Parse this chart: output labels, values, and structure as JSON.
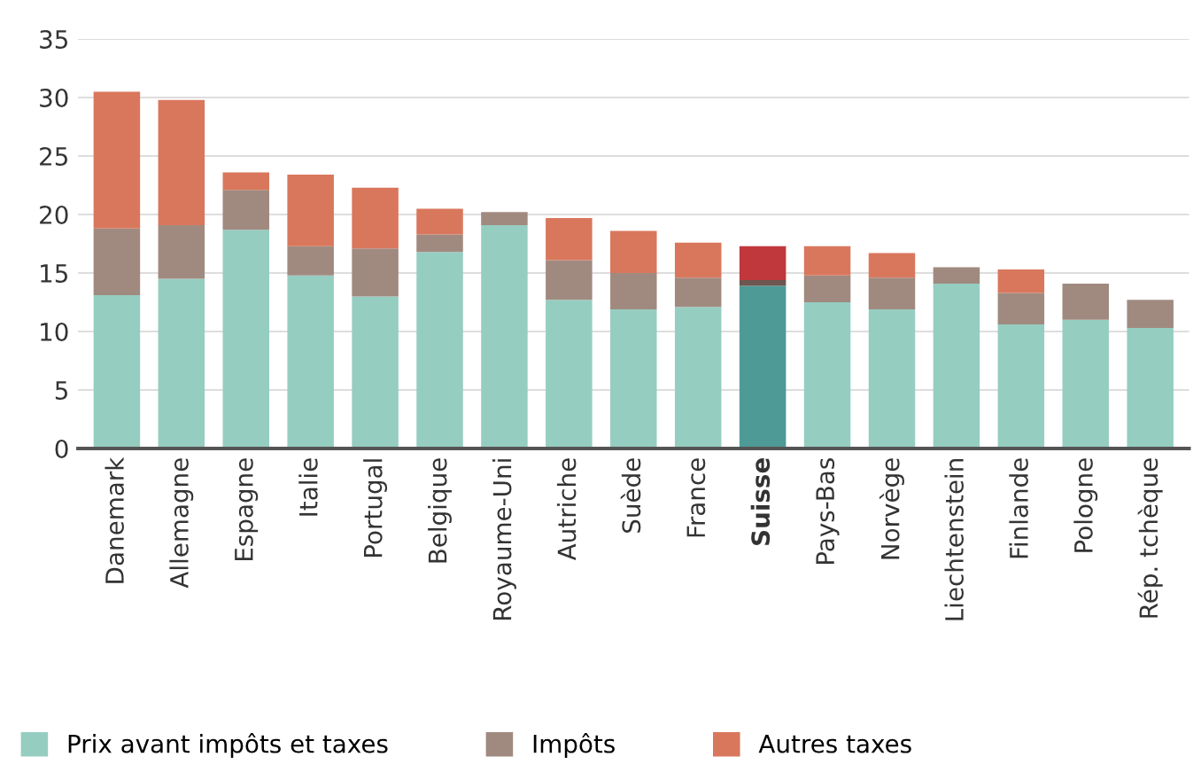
{
  "chart_data": {
    "type": "bar",
    "stacked": true,
    "categories": [
      "Danemark",
      "Allemagne",
      "Espagne",
      "Italie",
      "Portugal",
      "Belgique",
      "Royaume-Uni",
      "Autriche",
      "Suède",
      "France",
      "Suisse",
      "Pays-Bas",
      "Norvège",
      "Liechtenstein",
      "Finlande",
      "Pologne",
      "Rép. tchèque"
    ],
    "series": [
      {
        "name": "Prix avant impôts et taxes",
        "color": "#96cdc1",
        "colors": [
          "#96cdc1",
          "#96cdc1",
          "#96cdc1",
          "#96cdc1",
          "#96cdc1",
          "#96cdc1",
          "#96cdc1",
          "#96cdc1",
          "#96cdc1",
          "#96cdc1",
          "#4e9a96",
          "#96cdc1",
          "#96cdc1",
          "#96cdc1",
          "#96cdc1",
          "#96cdc1",
          "#96cdc1"
        ],
        "values": [
          13.1,
          14.5,
          18.7,
          14.8,
          13.0,
          16.8,
          19.1,
          12.7,
          11.9,
          12.1,
          13.9,
          12.5,
          11.9,
          14.1,
          10.6,
          11.0,
          10.3
        ]
      },
      {
        "name": "Impôts",
        "color": "#a08a80",
        "colors": [
          "#a08a80",
          "#a08a80",
          "#a08a80",
          "#a08a80",
          "#a08a80",
          "#a08a80",
          "#a08a80",
          "#a08a80",
          "#a08a80",
          "#a08a80",
          "#6d5750",
          "#a08a80",
          "#a08a80",
          "#a08a80",
          "#a08a80",
          "#a08a80",
          "#a08a80"
        ],
        "values": [
          5.7,
          4.6,
          3.4,
          2.5,
          4.1,
          1.5,
          1.1,
          3.4,
          3.1,
          2.5,
          0.5,
          2.3,
          2.7,
          1.4,
          2.7,
          3.1,
          2.4
        ]
      },
      {
        "name": "Autres taxes",
        "color": "#d9775c",
        "colors": [
          "#d9775c",
          "#d9775c",
          "#d9775c",
          "#d9775c",
          "#d9775c",
          "#d9775c",
          "#d9775c",
          "#d9775c",
          "#d9775c",
          "#d9775c",
          "#c0383c",
          "#d9775c",
          "#d9775c",
          "#d9775c",
          "#d9775c",
          "#d9775c",
          "#d9775c"
        ],
        "values": [
          11.7,
          10.7,
          1.5,
          6.1,
          5.2,
          2.2,
          0,
          3.6,
          3.6,
          3.0,
          2.9,
          2.5,
          2.1,
          0,
          2.0,
          0,
          0
        ]
      }
    ],
    "ylim": [
      0,
      35
    ],
    "yticks": [
      0,
      5,
      10,
      15,
      20,
      25,
      30,
      35
    ],
    "grid": "y",
    "legend": "bottom"
  }
}
